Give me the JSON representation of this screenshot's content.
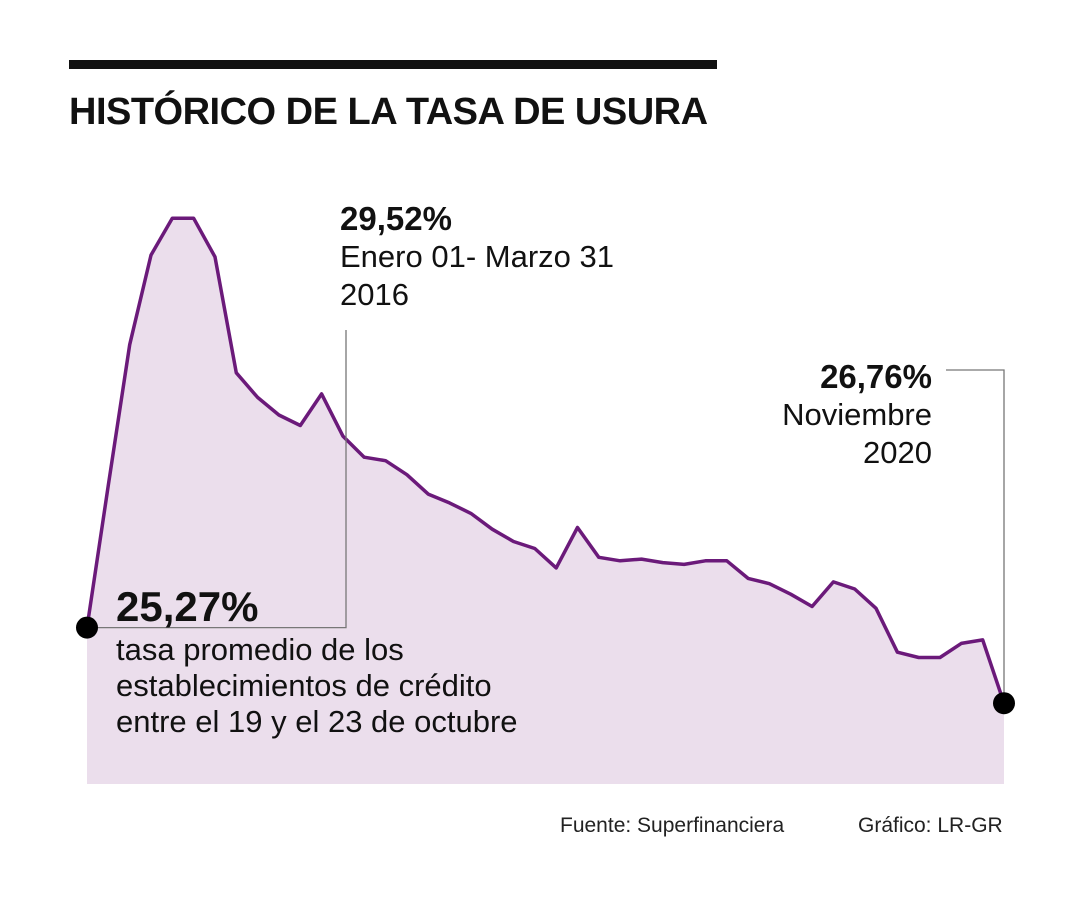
{
  "header": {
    "title": "HISTÓRICO DE LA TASA DE USURA"
  },
  "annotations": {
    "peak": {
      "value": "29,52%",
      "line1": "Enero 01- Marzo 31",
      "line2": "2016"
    },
    "last": {
      "value": "26,76%",
      "line1": "Noviembre",
      "line2": "2020"
    },
    "average": {
      "value": "25,27%",
      "line1": "tasa promedio de los",
      "line2": "establecimientos de crédito",
      "line3": "entre el 19 y el 23 de octubre"
    }
  },
  "footer": {
    "source": "Fuente: Superfinanciera",
    "credit": "Gráfico: LR-GR"
  },
  "colors": {
    "line": "#6b1a7a",
    "fill": "#ebdeec",
    "leader": "#777777",
    "marker": "#000000"
  },
  "chart_data": {
    "type": "area",
    "series": [
      {
        "values": [
          27.19,
          28.0,
          28.8,
          29.31,
          29.52,
          29.52,
          29.3,
          28.64,
          28.5,
          28.4,
          28.34,
          28.52,
          28.28,
          28.16,
          28.14,
          28.06,
          27.95,
          27.9,
          27.84,
          27.75,
          27.68,
          27.64,
          27.53,
          27.76,
          27.59,
          27.57,
          27.58,
          27.56,
          27.55,
          27.57,
          27.57,
          27.47,
          27.44,
          27.38,
          27.31,
          27.45,
          27.41,
          27.3,
          27.05,
          27.02,
          27.02,
          27.1,
          27.12,
          26.76
        ]
      }
    ],
    "ylim": [
      26.3,
      29.8
    ]
  }
}
